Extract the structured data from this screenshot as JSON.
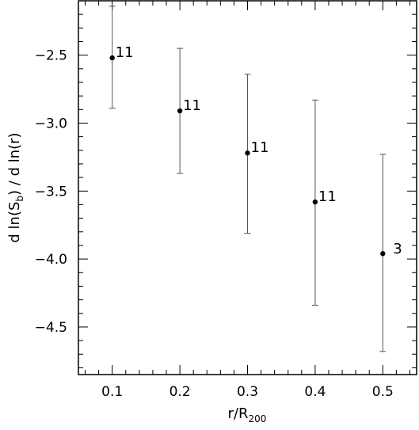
{
  "chart_data": {
    "type": "scatter",
    "title": "",
    "xlabel": {
      "base": "r/R",
      "sub": "200"
    },
    "ylabel": {
      "pre": "d ln(S",
      "sub": "b",
      "post": ") / d ln(r)"
    },
    "xlim": [
      0.05,
      0.55
    ],
    "ylim": [
      -4.85,
      -2.1
    ],
    "xticks": [
      0.1,
      0.2,
      0.3,
      0.4,
      0.5
    ],
    "xtick_labels": [
      "0.1",
      "0.2",
      "0.3",
      "0.4",
      "0.5"
    ],
    "yticks": [
      -2.5,
      -3.0,
      -3.5,
      -4.0,
      -4.5
    ],
    "ytick_labels": [
      "−2.5",
      "−3.0",
      "−3.5",
      "−4.0",
      "−4.5"
    ],
    "grid": false,
    "series": [
      {
        "x": [
          0.1,
          0.2,
          0.3,
          0.4,
          0.5
        ],
        "y": [
          -2.52,
          -2.91,
          -3.22,
          -3.58,
          -3.96
        ],
        "yerr_low": [
          -2.89,
          -3.37,
          -3.81,
          -4.34,
          -4.68
        ],
        "yerr_high": [
          -2.14,
          -2.45,
          -2.64,
          -2.83,
          -3.23
        ],
        "labels": [
          "11",
          "11",
          "11",
          "11",
          "3"
        ]
      }
    ]
  }
}
